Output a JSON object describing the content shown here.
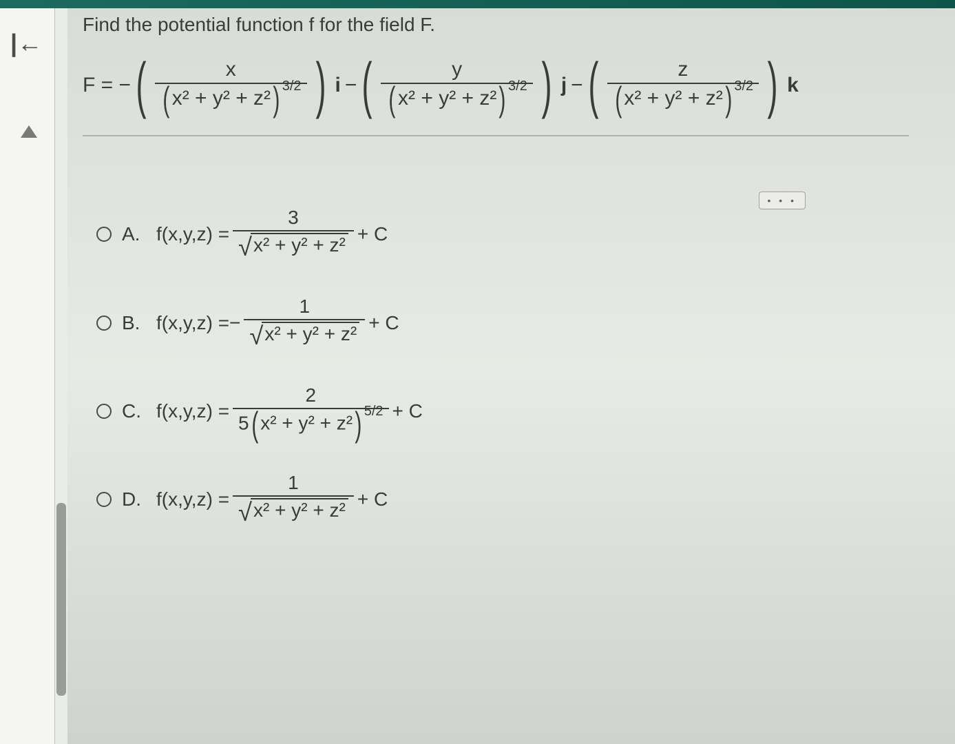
{
  "colors": {
    "top_bar": "#1a6b5e",
    "background": "#e8eae5",
    "text": "#3a3c38",
    "divider": "#b0b2ad",
    "scrollbar_thumb": "#9a9c97"
  },
  "question": {
    "prompt": "Find the potential function f for the field F."
  },
  "equation": {
    "lhs": "F = −",
    "term_numerators": [
      "x",
      "y",
      "z"
    ],
    "denominator_base": "x² + y² + z²",
    "denominator_exponent": "3/2",
    "unit_vectors": [
      "i",
      "j",
      "k"
    ],
    "operators_between": [
      "−",
      "−"
    ]
  },
  "expand_button": "• • •",
  "options": [
    {
      "label": "A.",
      "prefix": "f(x,y,z) = ",
      "sign": "",
      "numerator": "3",
      "denominator_type": "sqrt",
      "denominator_arg": "x² + y² + z²",
      "suffix": " + C"
    },
    {
      "label": "B.",
      "prefix": "f(x,y,z) = ",
      "sign": " − ",
      "numerator": "1",
      "denominator_type": "sqrt",
      "denominator_arg": "x² + y² + z²",
      "suffix": " + C"
    },
    {
      "label": "C.",
      "prefix": "f(x,y,z) = ",
      "sign": "",
      "numerator": "2",
      "denominator_type": "power",
      "denominator_coef": "5",
      "denominator_arg": "x² + y² + z²",
      "denominator_exp": "5/2",
      "suffix": " + C"
    },
    {
      "label": "D.",
      "prefix": "f(x,y,z) = ",
      "sign": "",
      "numerator": "1",
      "denominator_type": "sqrt",
      "denominator_arg": "x² + y² + z²",
      "suffix": " + C"
    }
  ]
}
